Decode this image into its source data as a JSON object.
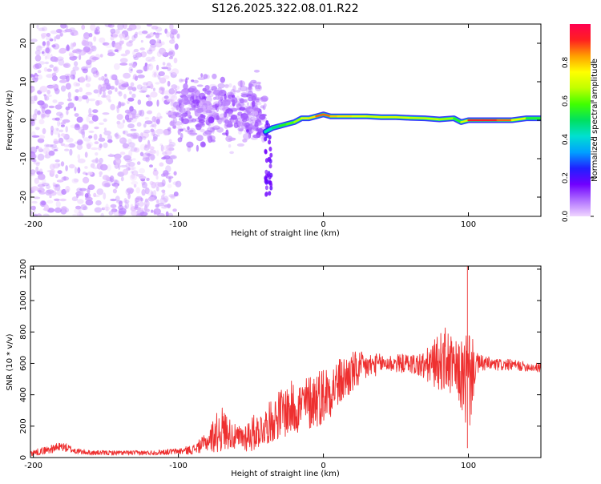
{
  "title": "S126.2025.322.08.01.R22",
  "colors": {
    "series": "#ee3030",
    "axis": "#000000",
    "ridge_low": "#7a2cf0",
    "ridge_high": "#ff1f2f"
  },
  "chart_data": [
    {
      "type": "heatmap",
      "name": "spectrogram",
      "xlabel": "Height of straight line (km)",
      "ylabel": "Frequency (Hz)",
      "xlim": [
        -202,
        150
      ],
      "ylim": [
        -25,
        25
      ],
      "x_ticks": [
        -200,
        -100,
        0,
        100
      ],
      "y_ticks": [
        -20,
        -10,
        0,
        10,
        20
      ],
      "colorbar": {
        "label": "Normalized spectral amplitude",
        "range": [
          0,
          1
        ],
        "ticks": [
          0.0,
          0.2,
          0.4,
          0.6,
          0.8
        ],
        "colormap": [
          "#f0d6ff",
          "#b070ff",
          "#7000ff",
          "#2020ff",
          "#00a0ff",
          "#00e0d0",
          "#00e060",
          "#40ff00",
          "#c0ff00",
          "#ffff00",
          "#ffa000",
          "#ff2020",
          "#ff0050"
        ]
      },
      "ridge": {
        "x": [
          -40,
          -35,
          -30,
          -25,
          -20,
          -15,
          -10,
          -5,
          0,
          5,
          10,
          20,
          30,
          40,
          50,
          60,
          70,
          80,
          90,
          95,
          100,
          110,
          120,
          130,
          140,
          150
        ],
        "freq": [
          -3,
          -2,
          -1.5,
          -1,
          -0.5,
          0.5,
          0.5,
          1,
          1.5,
          1,
          1,
          1,
          1,
          0.8,
          0.8,
          0.6,
          0.5,
          0.2,
          0.5,
          -0.5,
          0,
          0,
          0,
          0,
          0.5,
          0.5
        ],
        "amplitude": [
          0.4,
          0.45,
          0.5,
          0.6,
          0.6,
          0.7,
          0.75,
          0.8,
          0.95,
          0.8,
          0.8,
          0.75,
          0.7,
          0.7,
          0.7,
          0.7,
          0.65,
          0.7,
          0.6,
          0.5,
          0.9,
          0.95,
          0.9,
          0.85,
          0.6,
          0.5
        ]
      },
      "scatter_regions": [
        {
          "x_range": [
            -202,
            -100
          ],
          "freq_range": [
            -25,
            25
          ],
          "amplitude_range": [
            0.0,
            0.15
          ]
        },
        {
          "x_range": [
            -100,
            -40
          ],
          "freq_range": [
            -10,
            15
          ],
          "amplitude_range": [
            0.05,
            0.25
          ]
        }
      ]
    },
    {
      "type": "line",
      "name": "snr",
      "xlabel": "Height of straight line (km)",
      "ylabel": "SNR (10 * v/v)",
      "xlim": [
        -202,
        150
      ],
      "ylim": [
        0,
        1220
      ],
      "x_ticks": [
        -200,
        -100,
        0,
        100
      ],
      "y_ticks": [
        0,
        200,
        400,
        600,
        800,
        1000,
        1200
      ],
      "series": [
        {
          "name": "SNR",
          "x": [
            -200,
            -190,
            -180,
            -170,
            -160,
            -140,
            -120,
            -100,
            -90,
            -80,
            -75,
            -70,
            -65,
            -60,
            -55,
            -50,
            -45,
            -40,
            -35,
            -30,
            -25,
            -20,
            -15,
            -10,
            -5,
            0,
            10,
            20,
            30,
            40,
            50,
            60,
            70,
            80,
            85,
            90,
            95,
            100,
            105,
            110,
            120,
            130,
            140,
            150
          ],
          "y": [
            30,
            50,
            70,
            40,
            30,
            30,
            30,
            40,
            50,
            100,
            150,
            180,
            160,
            120,
            130,
            150,
            170,
            200,
            240,
            280,
            300,
            320,
            330,
            350,
            380,
            400,
            470,
            540,
            580,
            600,
            600,
            600,
            580,
            610,
            620,
            560,
            520,
            480,
            590,
            600,
            590,
            590,
            580,
            570
          ],
          "noise_amplitude": [
            20,
            25,
            30,
            20,
            15,
            15,
            15,
            20,
            30,
            60,
            120,
            150,
            100,
            80,
            90,
            120,
            110,
            120,
            140,
            160,
            170,
            180,
            170,
            180,
            190,
            190,
            160,
            140,
            90,
            60,
            60,
            60,
            100,
            180,
            220,
            180,
            220,
            400,
            80,
            50,
            40,
            35,
            30,
            30
          ]
        }
      ]
    }
  ]
}
